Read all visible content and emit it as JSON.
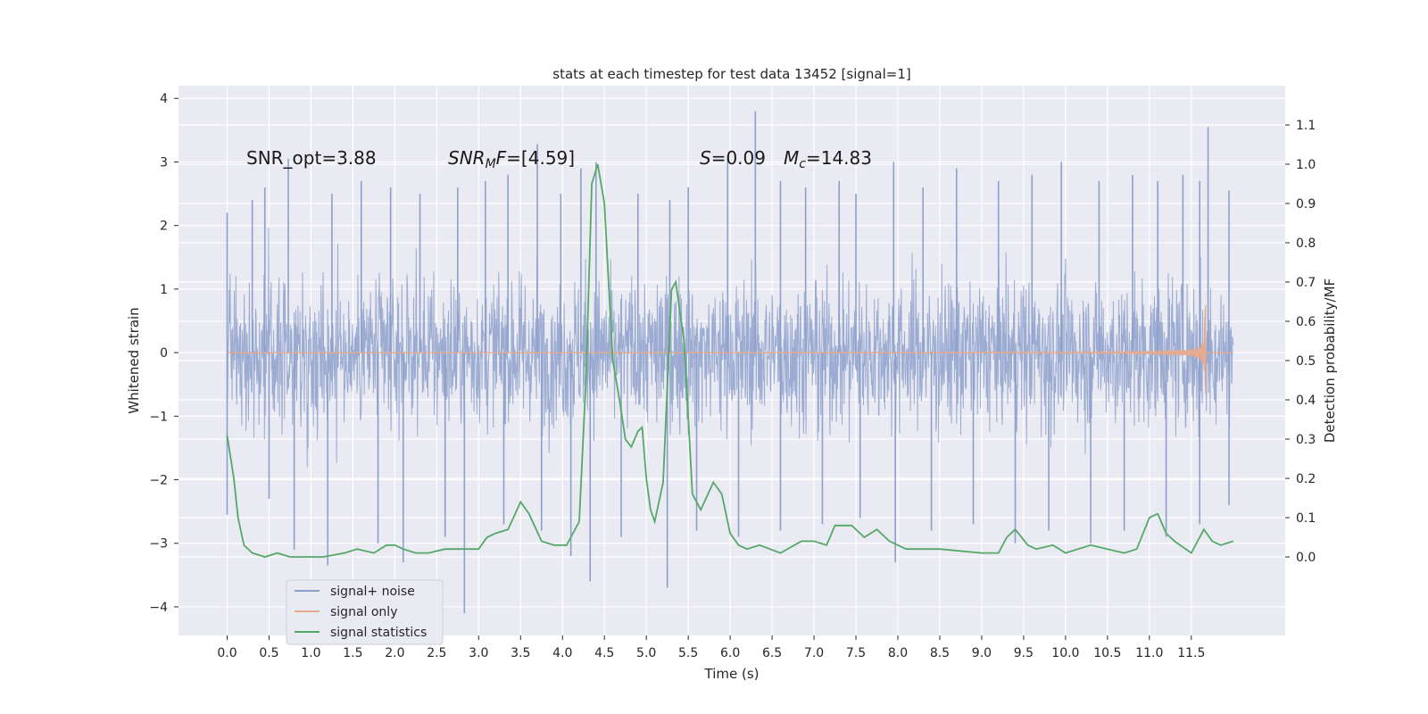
{
  "chart_data": {
    "type": "line",
    "title": "stats at each timestep for test data 13452 [signal=1]",
    "xlabel": "Time (s)",
    "ylabel_left": "Whitened strain",
    "ylabel_right": "Detection probability/MF",
    "xlim": [
      -0.58,
      12.62
    ],
    "ylim_left": [
      -4.45,
      4.2
    ],
    "ylim_right": [
      -0.2,
      1.2
    ],
    "x_ticks": [
      "0.0",
      "0.5",
      "1.0",
      "1.5",
      "2.0",
      "2.5",
      "3.0",
      "3.5",
      "4.0",
      "4.5",
      "5.0",
      "5.5",
      "6.0",
      "6.5",
      "7.0",
      "7.5",
      "8.0",
      "8.5",
      "9.0",
      "9.5",
      "10.0",
      "10.5",
      "11.0",
      "11.5"
    ],
    "y_left_ticks": [
      "−4",
      "−3",
      "−2",
      "−1",
      "0",
      "1",
      "2",
      "3",
      "4"
    ],
    "y_right_ticks": [
      "0.0",
      "0.1",
      "0.2",
      "0.3",
      "0.4",
      "0.5",
      "0.6",
      "0.7",
      "0.8",
      "0.9",
      "1.0",
      "1.1"
    ],
    "grid": true,
    "legend_position": "bottom-left",
    "annotations": {
      "snr_opt": "SNR_opt=3.88",
      "snr_mf_italic": "SNR",
      "snr_mf_sub": "M",
      "snr_mf_italic2": "F",
      "snr_mf_value": "=[4.59]",
      "s_italic": "S",
      "s_value": "=0.09",
      "mc_italic": "M",
      "mc_sub": "c",
      "mc_value": "=14.83"
    },
    "series": [
      {
        "name": "signal+ noise",
        "axis": "left",
        "color": "#8da0cb",
        "x_range": [
          0.0,
          12.0
        ],
        "spike_peaks_top": [
          [
            0.0,
            2.2
          ],
          [
            0.3,
            2.4
          ],
          [
            0.45,
            2.6
          ],
          [
            0.73,
            3.05
          ],
          [
            1.25,
            2.5
          ],
          [
            1.6,
            2.7
          ],
          [
            1.95,
            2.6
          ],
          [
            2.3,
            2.5
          ],
          [
            2.75,
            2.6
          ],
          [
            3.08,
            2.7
          ],
          [
            3.35,
            2.8
          ],
          [
            3.7,
            3.28
          ],
          [
            3.98,
            2.5
          ],
          [
            4.22,
            2.9
          ],
          [
            4.4,
            3.0
          ],
          [
            4.9,
            2.5
          ],
          [
            5.28,
            2.4
          ],
          [
            5.5,
            2.6
          ],
          [
            5.97,
            3.1
          ],
          [
            6.3,
            3.8
          ],
          [
            6.6,
            2.7
          ],
          [
            6.9,
            2.6
          ],
          [
            7.3,
            2.7
          ],
          [
            7.5,
            2.5
          ],
          [
            7.95,
            3.0
          ],
          [
            8.3,
            2.6
          ],
          [
            8.7,
            2.9
          ],
          [
            9.2,
            2.7
          ],
          [
            9.6,
            2.8
          ],
          [
            9.95,
            3.0
          ],
          [
            10.4,
            2.7
          ],
          [
            10.8,
            2.8
          ],
          [
            11.1,
            2.7
          ],
          [
            11.4,
            2.8
          ],
          [
            11.6,
            2.7
          ],
          [
            11.7,
            3.55
          ],
          [
            11.95,
            2.55
          ]
        ],
        "spike_peaks_bottom": [
          [
            0.0,
            -2.55
          ],
          [
            0.5,
            -2.3
          ],
          [
            0.8,
            -3.1
          ],
          [
            1.2,
            -3.35
          ],
          [
            1.8,
            -3.0
          ],
          [
            2.1,
            -3.3
          ],
          [
            2.6,
            -2.9
          ],
          [
            2.83,
            -4.1
          ],
          [
            3.3,
            -2.7
          ],
          [
            3.75,
            -2.8
          ],
          [
            4.1,
            -3.2
          ],
          [
            4.33,
            -3.6
          ],
          [
            4.7,
            -2.9
          ],
          [
            5.25,
            -3.7
          ],
          [
            5.6,
            -2.8
          ],
          [
            6.1,
            -2.9
          ],
          [
            6.6,
            -2.8
          ],
          [
            7.1,
            -2.7
          ],
          [
            7.55,
            -2.6
          ],
          [
            7.97,
            -3.3
          ],
          [
            8.4,
            -2.8
          ],
          [
            8.9,
            -2.7
          ],
          [
            9.4,
            -3.0
          ],
          [
            9.8,
            -2.8
          ],
          [
            10.3,
            -3.0
          ],
          [
            10.7,
            -2.8
          ],
          [
            11.2,
            -2.9
          ],
          [
            11.6,
            -2.7
          ],
          [
            11.95,
            -2.4
          ]
        ]
      },
      {
        "name": "signal only",
        "axis": "left",
        "color": "#e5aa8f",
        "x_range": [
          0.0,
          11.67
        ],
        "peak_amplitude": [
          0.75,
          -0.65
        ]
      },
      {
        "name": "signal statistics",
        "axis": "right",
        "color": "#55a868",
        "x": [
          0.0,
          0.08,
          0.13,
          0.2,
          0.3,
          0.45,
          0.6,
          0.75,
          0.95,
          1.15,
          1.4,
          1.55,
          1.75,
          1.9,
          2.0,
          2.1,
          2.25,
          2.4,
          2.6,
          2.8,
          3.0,
          3.1,
          3.2,
          3.35,
          3.5,
          3.6,
          3.75,
          3.9,
          4.05,
          4.1,
          4.2,
          4.28,
          4.35,
          4.42,
          4.5,
          4.6,
          4.68,
          4.75,
          4.82,
          4.9,
          4.95,
          5.0,
          5.05,
          5.1,
          5.2,
          5.3,
          5.35,
          5.45,
          5.55,
          5.65,
          5.8,
          5.9,
          6.0,
          6.1,
          6.2,
          6.35,
          6.6,
          6.85,
          7.0,
          7.15,
          7.25,
          7.45,
          7.6,
          7.75,
          7.9,
          8.1,
          8.5,
          9.0,
          9.2,
          9.3,
          9.4,
          9.55,
          9.65,
          9.85,
          10.0,
          10.15,
          10.3,
          10.5,
          10.7,
          10.85,
          11.0,
          11.1,
          11.2,
          11.3,
          11.5,
          11.65,
          11.75,
          11.85,
          12.0
        ],
        "y": [
          0.31,
          0.2,
          0.1,
          0.03,
          0.01,
          0.0,
          0.01,
          0.0,
          0.0,
          0.0,
          0.01,
          0.02,
          0.01,
          0.03,
          0.03,
          0.02,
          0.01,
          0.01,
          0.02,
          0.02,
          0.02,
          0.05,
          0.06,
          0.07,
          0.14,
          0.11,
          0.04,
          0.03,
          0.03,
          0.05,
          0.09,
          0.45,
          0.95,
          1.0,
          0.9,
          0.5,
          0.4,
          0.3,
          0.28,
          0.32,
          0.33,
          0.2,
          0.12,
          0.09,
          0.19,
          0.68,
          0.7,
          0.55,
          0.16,
          0.12,
          0.19,
          0.16,
          0.06,
          0.03,
          0.02,
          0.03,
          0.01,
          0.04,
          0.04,
          0.03,
          0.08,
          0.08,
          0.05,
          0.07,
          0.04,
          0.02,
          0.02,
          0.01,
          0.01,
          0.05,
          0.07,
          0.03,
          0.02,
          0.03,
          0.01,
          0.02,
          0.03,
          0.02,
          0.01,
          0.02,
          0.1,
          0.11,
          0.06,
          0.04,
          0.01,
          0.07,
          0.04,
          0.03,
          0.04
        ]
      }
    ]
  }
}
